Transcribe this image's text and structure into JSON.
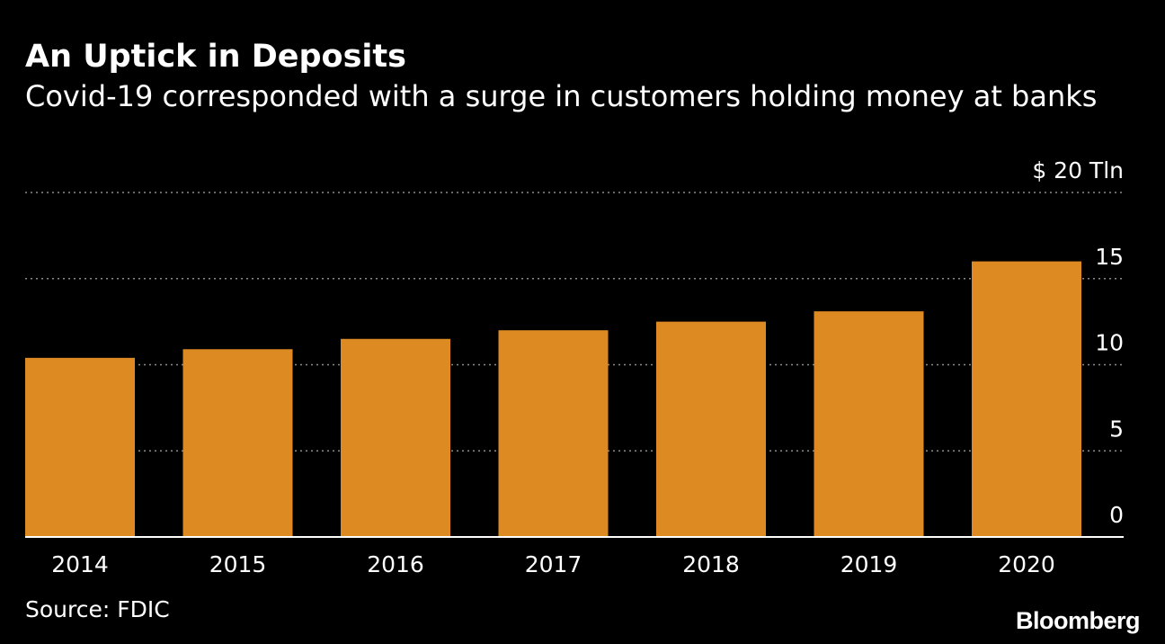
{
  "header": {
    "title": "An Uptick in Deposits",
    "subtitle": "Covid-19 corresponded with a surge in customers holding money at banks"
  },
  "footer": {
    "source": "Source: FDIC",
    "logo": "Bloomberg"
  },
  "colors": {
    "background": "#000000",
    "bar": "#de8a22",
    "text": "#ffffff",
    "grid": "#8c8c8c",
    "baseline": "#ffffff"
  },
  "chart_data": {
    "type": "bar",
    "categories": [
      "2014",
      "2015",
      "2016",
      "2017",
      "2018",
      "2019",
      "2020"
    ],
    "values": [
      10.4,
      10.9,
      11.5,
      12.0,
      12.5,
      13.1,
      16.0
    ],
    "ylim": [
      0,
      20
    ],
    "y_ticks": [
      0,
      5,
      10,
      15,
      20
    ],
    "y_tick_labels": [
      "0",
      "5",
      "10",
      "15",
      "$ 20 Tln"
    ],
    "grid": "dotted horizontal",
    "y_axis_position": "right",
    "legend": "none"
  }
}
